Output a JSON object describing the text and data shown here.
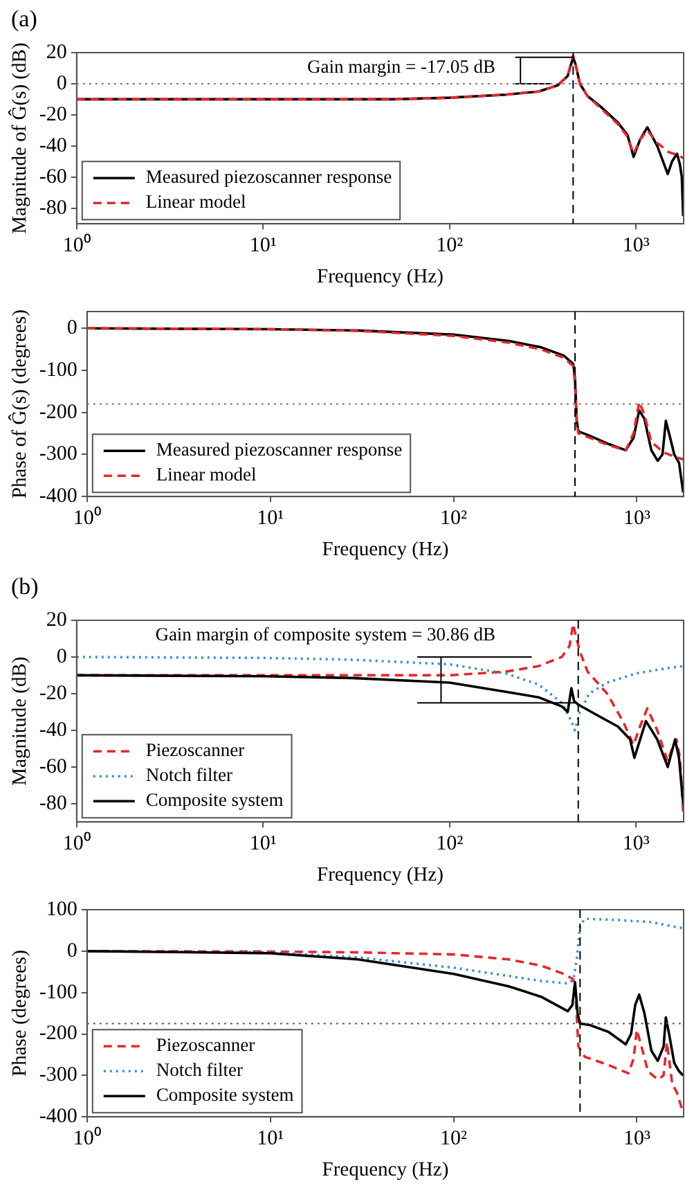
{
  "chart_data": [
    {
      "type": "line",
      "xlabel": "Frequency (Hz)",
      "ylabel": "Magnitude of Ĝ(s) (dB)",
      "log": "x",
      "xlim": [
        1,
        1800
      ],
      "ylim": [
        -90,
        20
      ],
      "xticks": [
        {
          "value": 1,
          "label": "10⁰"
        },
        {
          "value": 10,
          "label": "10¹"
        },
        {
          "value": 100,
          "label": "10²"
        },
        {
          "value": 1000,
          "label": "10³"
        }
      ],
      "yticks": [
        -80,
        -60,
        -40,
        -20,
        0,
        20
      ],
      "grid": false,
      "legend": "bottom left",
      "marker": "none",
      "annotations": [
        "(a)",
        "Gain margin = -17.05 dB"
      ],
      "ref_lines": [
        {
          "axis": "y",
          "value": 0,
          "line_style": "dotted",
          "color": "#777777"
        },
        {
          "axis": "x",
          "value": 460,
          "line_style": "dashed",
          "color": "#000000"
        }
      ],
      "series": [
        {
          "name": "Measured piezoscanner response",
          "color": "#000000",
          "line_style": "solid",
          "x": [
            1,
            10,
            50,
            100,
            200,
            300,
            380,
            430,
            460,
            475,
            500,
            550,
            650,
            800,
            900,
            970,
            1050,
            1150,
            1300,
            1480,
            1560,
            1660,
            1720,
            1760,
            1790
          ],
          "values": [
            -10,
            -10,
            -10,
            -9,
            -7,
            -5,
            -1,
            5,
            17,
            12,
            0,
            -8,
            -15,
            -25,
            -33,
            -47,
            -36,
            -28,
            -40,
            -58,
            -50,
            -45,
            -52,
            -60,
            -85
          ]
        },
        {
          "name": "Linear model",
          "color": "#e8262b",
          "line_style": "dashed",
          "x": [
            1,
            10,
            50,
            100,
            200,
            300,
            380,
            430,
            460,
            475,
            500,
            550,
            650,
            800,
            900,
            970,
            1050,
            1150,
            1300,
            1500,
            1700,
            1800
          ],
          "values": [
            -10,
            -10,
            -10,
            -9,
            -7,
            -5,
            -1,
            5,
            18,
            12,
            0,
            -8,
            -16,
            -26,
            -34,
            -45,
            -36,
            -30,
            -38,
            -44,
            -46,
            -48
          ]
        },
        {
          "color": "#000000",
          "line_style": "solid",
          "x": [
            225,
            460,
            300,
            225,
            356,
            300,
            240,
            240
          ],
          "values": [
            17,
            17,
            null,
            0,
            0,
            null,
            17,
            0
          ]
        }
      ]
    },
    {
      "type": "line",
      "xlabel": "Frequency (Hz)",
      "ylabel": "Phase of Ĝ(s) (degrees)",
      "log": "x",
      "xlim": [
        1,
        1800
      ],
      "ylim": [
        -400,
        40
      ],
      "xticks": [
        {
          "value": 1,
          "label": "10⁰"
        },
        {
          "value": 10,
          "label": "10¹"
        },
        {
          "value": 100,
          "label": "10²"
        },
        {
          "value": 1000,
          "label": "10³"
        }
      ],
      "yticks": [
        -400,
        -300,
        -200,
        -100,
        0
      ],
      "grid": false,
      "legend": "bottom left",
      "marker": "none",
      "ref_lines": [
        {
          "axis": "y",
          "value": -180,
          "line_style": "dotted",
          "color": "#777777"
        },
        {
          "axis": "x",
          "value": 460,
          "line_style": "dashed",
          "color": "#000000"
        }
      ],
      "series": [
        {
          "name": "Measured piezoscanner response",
          "color": "#000000",
          "line_style": "solid",
          "x": [
            1,
            10,
            30,
            100,
            200,
            300,
            400,
            450,
            460,
            470,
            480,
            550,
            700,
            870,
            960,
            1030,
            1100,
            1200,
            1300,
            1380,
            1440,
            1520,
            1600,
            1700,
            1790
          ],
          "values": [
            0,
            -2,
            -5,
            -15,
            -30,
            -45,
            -65,
            -85,
            -120,
            -220,
            -245,
            -255,
            -275,
            -290,
            -260,
            -195,
            -215,
            -290,
            -315,
            -300,
            -220,
            -260,
            -300,
            -320,
            -390
          ]
        },
        {
          "name": "Linear model",
          "color": "#e8262b",
          "line_style": "dashed",
          "x": [
            1,
            10,
            30,
            100,
            200,
            300,
            400,
            450,
            460,
            470,
            480,
            550,
            700,
            870,
            960,
            1030,
            1100,
            1200,
            1400,
            1600,
            1800
          ],
          "values": [
            0,
            -2,
            -6,
            -18,
            -34,
            -50,
            -70,
            -90,
            -130,
            -225,
            -250,
            -260,
            -278,
            -290,
            -250,
            -175,
            -205,
            -270,
            -295,
            -305,
            -312
          ]
        }
      ]
    },
    {
      "type": "line",
      "xlabel": "Frequency (Hz)",
      "ylabel": "Magnitude (dB)",
      "log": "x",
      "xlim": [
        1,
        1800
      ],
      "ylim": [
        -90,
        20
      ],
      "xticks": [
        {
          "value": 1,
          "label": "10⁰"
        },
        {
          "value": 10,
          "label": "10¹"
        },
        {
          "value": 100,
          "label": "10²"
        },
        {
          "value": 1000,
          "label": "10³"
        }
      ],
      "yticks": [
        -80,
        -60,
        -40,
        -20,
        0,
        20
      ],
      "grid": false,
      "legend": "bottom left",
      "marker": "none",
      "annotations": [
        "(b)",
        "Gain margin of composite system = 30.86 dB"
      ],
      "ref_lines": [
        {
          "axis": "x",
          "value": 490,
          "line_style": "dashed",
          "color": "#000000"
        }
      ],
      "series": [
        {
          "name": "Piezoscanner",
          "color": "#e8262b",
          "line_style": "dashed",
          "x": [
            1,
            100,
            200,
            300,
            400,
            440,
            460,
            480,
            500,
            550,
            700,
            850,
            970,
            1050,
            1150,
            1300,
            1480,
            1560,
            1650,
            1720,
            1790
          ],
          "values": [
            -10,
            -10,
            -8,
            -5,
            0,
            6,
            18,
            10,
            3,
            -8,
            -20,
            -35,
            -48,
            -38,
            -28,
            -40,
            -57,
            -50,
            -45,
            -55,
            -85
          ]
        },
        {
          "name": "Notch filter",
          "color": "#3b8fd0",
          "line_style": "dotted",
          "x": [
            1,
            10,
            30,
            100,
            200,
            300,
            400,
            450,
            470,
            500,
            560,
            700,
            1000,
            1500,
            1800
          ],
          "values": [
            0,
            -0.5,
            -1.5,
            -4,
            -9,
            -15,
            -25,
            -35,
            -40,
            -30,
            -20,
            -14,
            -9,
            -6,
            -5
          ]
        },
        {
          "name": "Composite system",
          "color": "#000000",
          "line_style": "solid",
          "x": [
            1,
            10,
            30,
            100,
            200,
            300,
            400,
            430,
            450,
            465,
            490,
            600,
            800,
            930,
            980,
            1130,
            1300,
            1480,
            1620,
            1700,
            1790
          ],
          "values": [
            -10,
            -10.5,
            -11.5,
            -14,
            -19,
            -22,
            -27,
            -30,
            -17,
            -24,
            -26,
            -31,
            -38,
            -45,
            -55,
            -35,
            -45,
            -60,
            -45,
            -55,
            -80
          ]
        },
        {
          "color": "#000000",
          "line_style": "solid",
          "x": [
            67,
            276,
            150,
            67,
            475,
            150,
            90,
            90
          ],
          "values": [
            0,
            0,
            null,
            -25,
            -25,
            null,
            -25,
            0
          ]
        }
      ]
    },
    {
      "type": "line",
      "xlabel": "Frequency (Hz)",
      "ylabel": "Phase (degrees)",
      "log": "x",
      "xlim": [
        1,
        1800
      ],
      "ylim": [
        -400,
        100
      ],
      "xticks": [
        {
          "value": 1,
          "label": "10⁰"
        },
        {
          "value": 10,
          "label": "10¹"
        },
        {
          "value": 100,
          "label": "10²"
        },
        {
          "value": 1000,
          "label": "10³"
        }
      ],
      "yticks": [
        -400,
        -300,
        -200,
        -100,
        0,
        100
      ],
      "grid": false,
      "legend": "bottom left",
      "marker": "none",
      "ref_lines": [
        {
          "axis": "y",
          "value": -175,
          "line_style": "dotted",
          "color": "#555555"
        },
        {
          "axis": "x",
          "value": 490,
          "line_style": "dashed",
          "color": "#000000"
        }
      ],
      "series": [
        {
          "name": "Piezoscanner",
          "color": "#e8262b",
          "line_style": "dashed",
          "x": [
            1,
            10,
            30,
            100,
            200,
            300,
            400,
            450,
            465,
            480,
            520,
            700,
            900,
            960,
            1000,
            1060,
            1150,
            1300,
            1400,
            1460,
            1560,
            1650,
            1790
          ],
          "values": [
            0,
            -1,
            -3,
            -8,
            -20,
            -35,
            -55,
            -68,
            -120,
            -230,
            -255,
            -275,
            -295,
            -260,
            -190,
            -230,
            -290,
            -310,
            -300,
            -220,
            -320,
            -340,
            -390
          ]
        },
        {
          "name": "Notch filter",
          "color": "#3b8fd0",
          "line_style": "dotted",
          "x": [
            1,
            10,
            30,
            100,
            200,
            300,
            420,
            450,
            470,
            490,
            520,
            800,
            1200,
            1800
          ],
          "values": [
            0,
            -3,
            -15,
            -40,
            -60,
            -72,
            -78,
            -70,
            -20,
            60,
            78,
            75,
            70,
            55
          ]
        },
        {
          "name": "Composite system",
          "color": "#000000",
          "line_style": "solid",
          "x": [
            1,
            10,
            30,
            100,
            200,
            300,
            420,
            445,
            460,
            475,
            490,
            550,
            700,
            870,
            930,
            980,
            1030,
            1100,
            1200,
            1300,
            1400,
            1440,
            1500,
            1600,
            1700,
            1790
          ],
          "values": [
            0,
            -5,
            -20,
            -55,
            -85,
            -110,
            -145,
            -130,
            -75,
            -150,
            -175,
            -178,
            -195,
            -225,
            -200,
            -130,
            -105,
            -150,
            -240,
            -265,
            -230,
            -160,
            -200,
            -270,
            -290,
            -300
          ]
        }
      ]
    }
  ]
}
